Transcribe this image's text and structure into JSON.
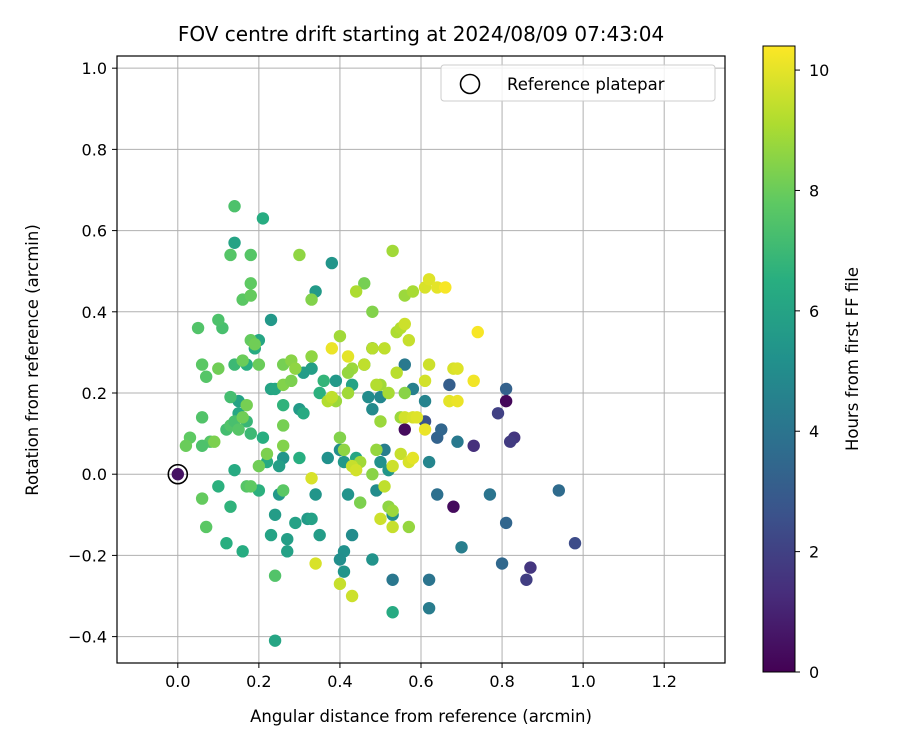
{
  "chart_data": {
    "type": "scatter",
    "title": "FOV centre drift starting at 2024/08/09 07:43:04",
    "xlabel": "Angular distance from reference (arcmin)",
    "ylabel": "Rotation from reference (arcmin)",
    "xlim": [
      -0.15,
      1.35
    ],
    "ylim": [
      -0.465,
      1.03
    ],
    "xticks": [
      0.0,
      0.2,
      0.4,
      0.6,
      0.8,
      1.0,
      1.2
    ],
    "xtick_labels": [
      "0.0",
      "0.2",
      "0.4",
      "0.6",
      "0.8",
      "1.0",
      "1.2"
    ],
    "yticks": [
      -0.4,
      -0.2,
      0.0,
      0.2,
      0.4,
      0.6,
      0.8,
      1.0
    ],
    "ytick_labels": [
      "−0.4",
      "−0.2",
      "0.0",
      "0.2",
      "0.4",
      "0.6",
      "0.8",
      "1.0"
    ],
    "grid": true,
    "legend": {
      "placement": "top-right",
      "entries": [
        "Reference platepar"
      ]
    },
    "reference_point": {
      "x": 0.0,
      "y": 0.0
    },
    "colorbar": {
      "label": "Hours from first FF file",
      "colormap": "viridis",
      "range": [
        0,
        10.4
      ],
      "ticks": [
        0,
        2,
        4,
        6,
        8,
        10
      ],
      "tick_labels": [
        "0",
        "2",
        "4",
        "6",
        "8",
        "10"
      ]
    },
    "points": [
      {
        "x": 0.0,
        "y": 0.0,
        "h": 0.5
      },
      {
        "x": 0.56,
        "y": 0.11,
        "h": 0.3
      },
      {
        "x": 0.81,
        "y": 0.18,
        "h": 0.2
      },
      {
        "x": 0.68,
        "y": -0.08,
        "h": 0.3
      },
      {
        "x": 0.83,
        "y": 0.09,
        "h": 1.6
      },
      {
        "x": 0.82,
        "y": 0.08,
        "h": 1.8
      },
      {
        "x": 0.73,
        "y": 0.07,
        "h": 1.4
      },
      {
        "x": 0.79,
        "y": 0.15,
        "h": 2.0
      },
      {
        "x": 0.87,
        "y": -0.23,
        "h": 1.6
      },
      {
        "x": 0.86,
        "y": -0.26,
        "h": 1.9
      },
      {
        "x": 0.98,
        "y": -0.17,
        "h": 2.4
      },
      {
        "x": 0.61,
        "y": 0.13,
        "h": 2.6
      },
      {
        "x": 0.81,
        "y": 0.21,
        "h": 3.2
      },
      {
        "x": 0.8,
        "y": -0.22,
        "h": 3.5
      },
      {
        "x": 0.81,
        "y": -0.12,
        "h": 3.4
      },
      {
        "x": 0.94,
        "y": -0.04,
        "h": 3.6
      },
      {
        "x": 0.77,
        "y": -0.05,
        "h": 4.0
      },
      {
        "x": 0.64,
        "y": 0.09,
        "h": 3.3
      },
      {
        "x": 0.65,
        "y": 0.11,
        "h": 3.4
      },
      {
        "x": 0.67,
        "y": 0.22,
        "h": 3.1
      },
      {
        "x": 0.64,
        "y": -0.05,
        "h": 3.8
      },
      {
        "x": 0.69,
        "y": 0.08,
        "h": 4.2
      },
      {
        "x": 0.7,
        "y": -0.18,
        "h": 4.4
      },
      {
        "x": 0.62,
        "y": -0.26,
        "h": 4.0
      },
      {
        "x": 0.62,
        "y": -0.33,
        "h": 4.3
      },
      {
        "x": 0.53,
        "y": -0.26,
        "h": 4.1
      },
      {
        "x": 0.56,
        "y": 0.27,
        "h": 4.2
      },
      {
        "x": 0.58,
        "y": 0.21,
        "h": 4.5
      },
      {
        "x": 0.61,
        "y": 0.18,
        "h": 4.6
      },
      {
        "x": 0.62,
        "y": 0.03,
        "h": 4.7
      },
      {
        "x": 0.51,
        "y": 0.06,
        "h": 4.4
      },
      {
        "x": 0.48,
        "y": 0.31,
        "h": 4.0
      },
      {
        "x": 0.5,
        "y": 0.19,
        "h": 4.8
      },
      {
        "x": 0.47,
        "y": 0.19,
        "h": 5.0
      },
      {
        "x": 0.48,
        "y": 0.16,
        "h": 4.9
      },
      {
        "x": 0.5,
        "y": 0.03,
        "h": 5.2
      },
      {
        "x": 0.49,
        "y": -0.04,
        "h": 5.0
      },
      {
        "x": 0.52,
        "y": 0.01,
        "h": 5.4
      },
      {
        "x": 0.53,
        "y": -0.1,
        "h": 5.1
      },
      {
        "x": 0.48,
        "y": -0.21,
        "h": 5.3
      },
      {
        "x": 0.43,
        "y": -0.15,
        "h": 5.0
      },
      {
        "x": 0.41,
        "y": -0.19,
        "h": 5.2
      },
      {
        "x": 0.4,
        "y": -0.21,
        "h": 5.1
      },
      {
        "x": 0.41,
        "y": -0.24,
        "h": 5.4
      },
      {
        "x": 0.42,
        "y": -0.05,
        "h": 5.3
      },
      {
        "x": 0.4,
        "y": 0.06,
        "h": 5.0
      },
      {
        "x": 0.41,
        "y": 0.03,
        "h": 5.5
      },
      {
        "x": 0.37,
        "y": 0.04,
        "h": 5.2
      },
      {
        "x": 0.39,
        "y": 0.23,
        "h": 5.5
      },
      {
        "x": 0.38,
        "y": 0.52,
        "h": 5.4
      },
      {
        "x": 0.34,
        "y": 0.45,
        "h": 5.6
      },
      {
        "x": 0.33,
        "y": 0.26,
        "h": 5.8
      },
      {
        "x": 0.31,
        "y": 0.25,
        "h": 5.7
      },
      {
        "x": 0.3,
        "y": 0.16,
        "h": 5.6
      },
      {
        "x": 0.26,
        "y": 0.04,
        "h": 5.4
      },
      {
        "x": 0.25,
        "y": 0.02,
        "h": 5.8
      },
      {
        "x": 0.25,
        "y": -0.05,
        "h": 5.5
      },
      {
        "x": 0.24,
        "y": -0.1,
        "h": 5.7
      },
      {
        "x": 0.29,
        "y": -0.12,
        "h": 5.9
      },
      {
        "x": 0.32,
        "y": -0.11,
        "h": 5.6
      },
      {
        "x": 0.33,
        "y": -0.11,
        "h": 5.9
      },
      {
        "x": 0.34,
        "y": -0.05,
        "h": 5.4
      },
      {
        "x": 0.35,
        "y": -0.15,
        "h": 5.7
      },
      {
        "x": 0.27,
        "y": -0.16,
        "h": 5.8
      },
      {
        "x": 0.27,
        "y": -0.19,
        "h": 5.9
      },
      {
        "x": 0.23,
        "y": -0.15,
        "h": 6.0
      },
      {
        "x": 0.24,
        "y": -0.41,
        "h": 6.1
      },
      {
        "x": 0.23,
        "y": 0.38,
        "h": 5.5
      },
      {
        "x": 0.23,
        "y": 0.21,
        "h": 6.0
      },
      {
        "x": 0.24,
        "y": 0.21,
        "h": 6.2
      },
      {
        "x": 0.2,
        "y": 0.33,
        "h": 6.1
      },
      {
        "x": 0.19,
        "y": 0.31,
        "h": 6.3
      },
      {
        "x": 0.17,
        "y": 0.27,
        "h": 6.5
      },
      {
        "x": 0.15,
        "y": 0.18,
        "h": 6.0
      },
      {
        "x": 0.15,
        "y": 0.15,
        "h": 6.2
      },
      {
        "x": 0.14,
        "y": 0.57,
        "h": 6.0
      },
      {
        "x": 0.21,
        "y": 0.63,
        "h": 6.4
      },
      {
        "x": 0.14,
        "y": 0.01,
        "h": 6.3
      },
      {
        "x": 0.16,
        "y": -0.19,
        "h": 6.4
      },
      {
        "x": 0.12,
        "y": -0.17,
        "h": 6.5
      },
      {
        "x": 0.1,
        "y": -0.03,
        "h": 6.6
      },
      {
        "x": 0.13,
        "y": -0.08,
        "h": 6.7
      },
      {
        "x": 0.21,
        "y": 0.09,
        "h": 6.5
      },
      {
        "x": 0.22,
        "y": 0.03,
        "h": 6.3
      },
      {
        "x": 0.2,
        "y": -0.04,
        "h": 6.6
      },
      {
        "x": 0.3,
        "y": 0.04,
        "h": 6.5
      },
      {
        "x": 0.31,
        "y": 0.15,
        "h": 6.3
      },
      {
        "x": 0.44,
        "y": 0.04,
        "h": 6.1
      },
      {
        "x": 0.43,
        "y": 0.22,
        "h": 6.0
      },
      {
        "x": 0.46,
        "y": 0.27,
        "h": 6.2
      },
      {
        "x": 0.53,
        "y": -0.34,
        "h": 6.3
      },
      {
        "x": 0.35,
        "y": 0.2,
        "h": 6.6
      },
      {
        "x": 0.36,
        "y": 0.23,
        "h": 6.8
      },
      {
        "x": 0.26,
        "y": 0.17,
        "h": 6.7
      },
      {
        "x": 0.17,
        "y": 0.13,
        "h": 6.9
      },
      {
        "x": 0.18,
        "y": 0.1,
        "h": 7.0
      },
      {
        "x": 0.14,
        "y": 0.27,
        "h": 7.0
      },
      {
        "x": 0.13,
        "y": 0.19,
        "h": 7.2
      },
      {
        "x": 0.11,
        "y": 0.36,
        "h": 7.3
      },
      {
        "x": 0.1,
        "y": 0.38,
        "h": 7.4
      },
      {
        "x": 0.12,
        "y": 0.11,
        "h": 7.2
      },
      {
        "x": 0.13,
        "y": 0.12,
        "h": 7.5
      },
      {
        "x": 0.14,
        "y": 0.13,
        "h": 7.3
      },
      {
        "x": 0.15,
        "y": 0.11,
        "h": 7.6
      },
      {
        "x": 0.08,
        "y": 0.08,
        "h": 7.6
      },
      {
        "x": 0.06,
        "y": 0.07,
        "h": 7.4
      },
      {
        "x": 0.06,
        "y": 0.14,
        "h": 7.5
      },
      {
        "x": 0.07,
        "y": 0.24,
        "h": 7.6
      },
      {
        "x": 0.06,
        "y": 0.27,
        "h": 7.7
      },
      {
        "x": 0.05,
        "y": 0.36,
        "h": 7.5
      },
      {
        "x": 0.03,
        "y": 0.09,
        "h": 7.8
      },
      {
        "x": 0.02,
        "y": 0.07,
        "h": 8.0
      },
      {
        "x": 0.06,
        "y": -0.06,
        "h": 7.9
      },
      {
        "x": 0.07,
        "y": -0.13,
        "h": 7.7
      },
      {
        "x": 0.17,
        "y": -0.03,
        "h": 7.6
      },
      {
        "x": 0.18,
        "y": -0.03,
        "h": 7.8
      },
      {
        "x": 0.24,
        "y": -0.25,
        "h": 7.5
      },
      {
        "x": 0.26,
        "y": -0.04,
        "h": 7.7
      },
      {
        "x": 0.16,
        "y": 0.43,
        "h": 7.7
      },
      {
        "x": 0.18,
        "y": 0.47,
        "h": 7.8
      },
      {
        "x": 0.18,
        "y": 0.44,
        "h": 7.9
      },
      {
        "x": 0.18,
        "y": 0.54,
        "h": 7.6
      },
      {
        "x": 0.14,
        "y": 0.66,
        "h": 7.4
      },
      {
        "x": 0.13,
        "y": 0.54,
        "h": 7.6
      },
      {
        "x": 0.18,
        "y": 0.33,
        "h": 7.9
      },
      {
        "x": 0.19,
        "y": 0.32,
        "h": 8.1
      },
      {
        "x": 0.16,
        "y": 0.28,
        "h": 8.0
      },
      {
        "x": 0.2,
        "y": 0.27,
        "h": 8.0
      },
      {
        "x": 0.17,
        "y": 0.17,
        "h": 8.2
      },
      {
        "x": 0.16,
        "y": 0.14,
        "h": 8.1
      },
      {
        "x": 0.1,
        "y": 0.26,
        "h": 8.1
      },
      {
        "x": 0.09,
        "y": 0.08,
        "h": 8.3
      },
      {
        "x": 0.22,
        "y": 0.05,
        "h": 8.3
      },
      {
        "x": 0.2,
        "y": 0.02,
        "h": 8.1
      },
      {
        "x": 0.26,
        "y": 0.12,
        "h": 8.2
      },
      {
        "x": 0.26,
        "y": 0.07,
        "h": 8.4
      },
      {
        "x": 0.26,
        "y": 0.27,
        "h": 8.2
      },
      {
        "x": 0.26,
        "y": 0.22,
        "h": 8.4
      },
      {
        "x": 0.28,
        "y": 0.23,
        "h": 8.3
      },
      {
        "x": 0.28,
        "y": 0.28,
        "h": 8.5
      },
      {
        "x": 0.29,
        "y": 0.26,
        "h": 8.6
      },
      {
        "x": 0.3,
        "y": 0.54,
        "h": 8.6
      },
      {
        "x": 0.33,
        "y": 0.43,
        "h": 8.4
      },
      {
        "x": 0.33,
        "y": 0.29,
        "h": 8.6
      },
      {
        "x": 0.4,
        "y": 0.09,
        "h": 8.4
      },
      {
        "x": 0.41,
        "y": 0.06,
        "h": 8.6
      },
      {
        "x": 0.45,
        "y": -0.07,
        "h": 8.3
      },
      {
        "x": 0.48,
        "y": 0.0,
        "h": 8.5
      },
      {
        "x": 0.49,
        "y": 0.06,
        "h": 8.7
      },
      {
        "x": 0.5,
        "y": 0.13,
        "h": 8.8
      },
      {
        "x": 0.52,
        "y": -0.08,
        "h": 8.6
      },
      {
        "x": 0.53,
        "y": -0.09,
        "h": 8.8
      },
      {
        "x": 0.57,
        "y": -0.13,
        "h": 8.7
      },
      {
        "x": 0.46,
        "y": 0.47,
        "h": 8.2
      },
      {
        "x": 0.48,
        "y": 0.4,
        "h": 8.4
      },
      {
        "x": 0.43,
        "y": 0.26,
        "h": 8.8
      },
      {
        "x": 0.42,
        "y": 0.25,
        "h": 8.7
      },
      {
        "x": 0.39,
        "y": 0.18,
        "h": 8.8
      },
      {
        "x": 0.4,
        "y": 0.34,
        "h": 8.9
      },
      {
        "x": 0.42,
        "y": 0.2,
        "h": 8.9
      },
      {
        "x": 0.45,
        "y": 0.03,
        "h": 8.9
      },
      {
        "x": 0.5,
        "y": 0.22,
        "h": 8.9
      },
      {
        "x": 0.52,
        "y": 0.2,
        "h": 9.0
      },
      {
        "x": 0.56,
        "y": 0.2,
        "h": 8.5
      },
      {
        "x": 0.55,
        "y": 0.14,
        "h": 8.8
      },
      {
        "x": 0.56,
        "y": 0.44,
        "h": 8.8
      },
      {
        "x": 0.53,
        "y": 0.55,
        "h": 8.9
      },
      {
        "x": 0.58,
        "y": 0.45,
        "h": 9.0
      },
      {
        "x": 0.54,
        "y": 0.35,
        "h": 9.1
      },
      {
        "x": 0.55,
        "y": 0.36,
        "h": 9.2
      },
      {
        "x": 0.54,
        "y": 0.25,
        "h": 9.3
      },
      {
        "x": 0.49,
        "y": 0.22,
        "h": 9.2
      },
      {
        "x": 0.48,
        "y": 0.31,
        "h": 9.3
      },
      {
        "x": 0.51,
        "y": 0.31,
        "h": 9.4
      },
      {
        "x": 0.46,
        "y": 0.27,
        "h": 9.4
      },
      {
        "x": 0.44,
        "y": 0.45,
        "h": 9.1
      },
      {
        "x": 0.37,
        "y": 0.18,
        "h": 9.2
      },
      {
        "x": 0.38,
        "y": 0.19,
        "h": 9.4
      },
      {
        "x": 0.4,
        "y": -0.27,
        "h": 9.5
      },
      {
        "x": 0.43,
        "y": -0.3,
        "h": 9.6
      },
      {
        "x": 0.34,
        "y": -0.22,
        "h": 9.8
      },
      {
        "x": 0.33,
        "y": -0.01,
        "h": 9.8
      },
      {
        "x": 0.43,
        "y": 0.02,
        "h": 9.5
      },
      {
        "x": 0.44,
        "y": 0.01,
        "h": 9.7
      },
      {
        "x": 0.5,
        "y": -0.11,
        "h": 9.6
      },
      {
        "x": 0.53,
        "y": -0.13,
        "h": 9.5
      },
      {
        "x": 0.51,
        "y": -0.03,
        "h": 9.4
      },
      {
        "x": 0.53,
        "y": 0.02,
        "h": 9.6
      },
      {
        "x": 0.56,
        "y": 0.14,
        "h": 9.7
      },
      {
        "x": 0.58,
        "y": 0.14,
        "h": 9.8
      },
      {
        "x": 0.59,
        "y": 0.14,
        "h": 9.9
      },
      {
        "x": 0.55,
        "y": 0.05,
        "h": 9.5
      },
      {
        "x": 0.57,
        "y": 0.03,
        "h": 9.8
      },
      {
        "x": 0.58,
        "y": 0.04,
        "h": 10.0
      },
      {
        "x": 0.61,
        "y": 0.11,
        "h": 10.1
      },
      {
        "x": 0.62,
        "y": 0.27,
        "h": 9.6
      },
      {
        "x": 0.61,
        "y": 0.23,
        "h": 9.7
      },
      {
        "x": 0.57,
        "y": 0.33,
        "h": 9.5
      },
      {
        "x": 0.56,
        "y": 0.37,
        "h": 9.6
      },
      {
        "x": 0.61,
        "y": 0.46,
        "h": 9.8
      },
      {
        "x": 0.62,
        "y": 0.48,
        "h": 9.9
      },
      {
        "x": 0.64,
        "y": 0.46,
        "h": 10.0
      },
      {
        "x": 0.66,
        "y": 0.46,
        "h": 10.3
      },
      {
        "x": 0.67,
        "y": 0.18,
        "h": 10.0
      },
      {
        "x": 0.68,
        "y": 0.26,
        "h": 9.8
      },
      {
        "x": 0.69,
        "y": 0.26,
        "h": 9.9
      },
      {
        "x": 0.69,
        "y": 0.18,
        "h": 10.1
      },
      {
        "x": 0.73,
        "y": 0.23,
        "h": 10.2
      },
      {
        "x": 0.74,
        "y": 0.35,
        "h": 10.3
      },
      {
        "x": 0.42,
        "y": 0.29,
        "h": 10.0
      },
      {
        "x": 0.38,
        "y": 0.31,
        "h": 10.1
      }
    ]
  }
}
